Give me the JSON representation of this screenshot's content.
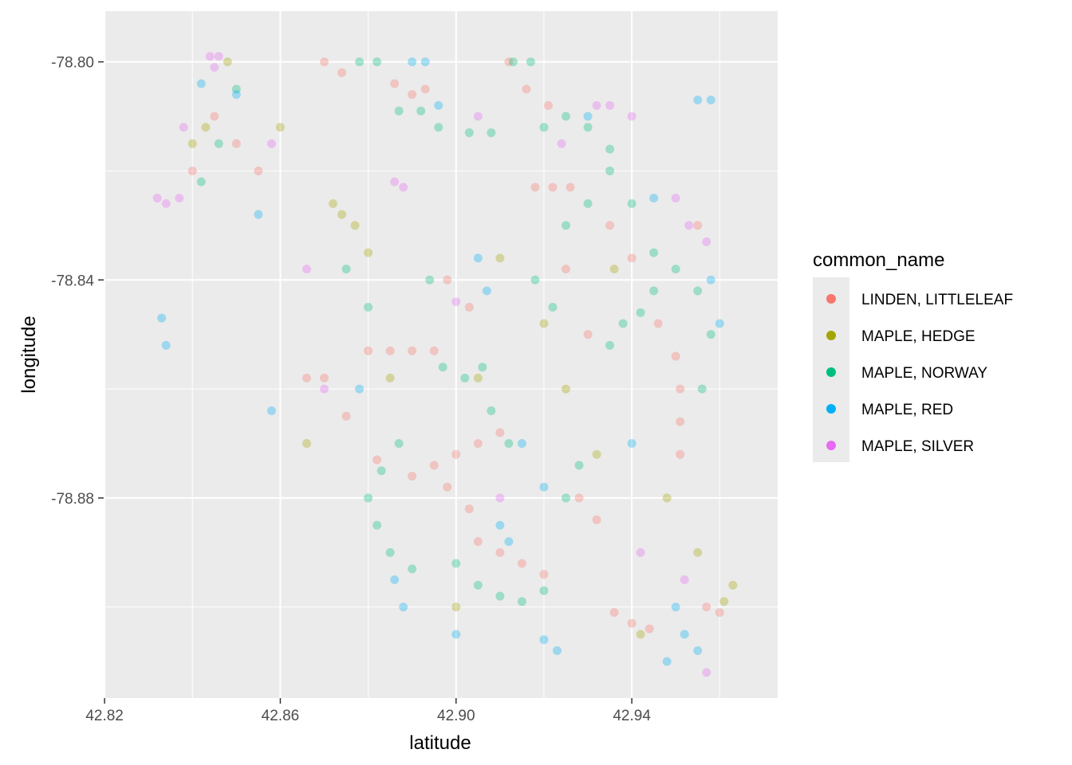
{
  "chart_data": {
    "type": "scatter",
    "xlabel": "latitude",
    "ylabel": "longitude",
    "xlim": [
      42.8198,
      42.9732
    ],
    "ylim": [
      -78.9167,
      -78.7907
    ],
    "x_ticks": [
      42.82,
      42.86,
      42.9,
      42.94
    ],
    "x_tick_labels": [
      "42.82",
      "42.86",
      "42.90",
      "42.94"
    ],
    "y_ticks": [
      -78.8,
      -78.84,
      -78.88
    ],
    "y_tick_labels": [
      "-78.80",
      "-78.84",
      "-78.88"
    ],
    "grid": true,
    "point_alpha": 0.15,
    "legend": {
      "title": "common_name",
      "position": "right",
      "entries": [
        {
          "label": "LINDEN, LITTLELEAF",
          "color": "#F8766D"
        },
        {
          "label": "MAPLE, HEDGE",
          "color": "#A3A500"
        },
        {
          "label": "MAPLE, NORWAY",
          "color": "#00BF7D"
        },
        {
          "label": "MAPLE, RED",
          "color": "#00B0F6"
        },
        {
          "label": "MAPLE, SILVER",
          "color": "#E76BF3"
        }
      ]
    },
    "series": [
      {
        "name": "LINDEN, LITTLELEAF",
        "color": "#F8766D",
        "points": [
          [
            42.886,
            -78.804
          ],
          [
            42.89,
            -78.806
          ],
          [
            42.893,
            -78.805
          ],
          [
            42.88,
            -78.853
          ],
          [
            42.885,
            -78.853
          ],
          [
            42.89,
            -78.853
          ],
          [
            42.895,
            -78.853
          ],
          [
            42.918,
            -78.823
          ],
          [
            42.922,
            -78.823
          ],
          [
            42.926,
            -78.823
          ],
          [
            42.91,
            -78.868
          ],
          [
            42.905,
            -78.87
          ],
          [
            42.9,
            -78.872
          ],
          [
            42.895,
            -78.874
          ],
          [
            42.89,
            -78.876
          ],
          [
            42.905,
            -78.888
          ],
          [
            42.91,
            -78.89
          ],
          [
            42.915,
            -78.892
          ],
          [
            42.92,
            -78.894
          ],
          [
            42.936,
            -78.901
          ],
          [
            42.94,
            -78.903
          ],
          [
            42.944,
            -78.904
          ],
          [
            42.957,
            -78.9
          ],
          [
            42.96,
            -78.901
          ],
          [
            42.951,
            -78.86
          ],
          [
            42.951,
            -78.866
          ],
          [
            42.951,
            -78.872
          ],
          [
            42.845,
            -78.81
          ],
          [
            42.85,
            -78.815
          ],
          [
            42.855,
            -78.82
          ],
          [
            42.84,
            -78.82
          ],
          [
            42.87,
            -78.8
          ],
          [
            42.874,
            -78.802
          ],
          [
            42.898,
            -78.84
          ],
          [
            42.903,
            -78.845
          ],
          [
            42.925,
            -78.838
          ],
          [
            42.93,
            -78.85
          ],
          [
            42.912,
            -78.8
          ],
          [
            42.916,
            -78.805
          ],
          [
            42.921,
            -78.808
          ],
          [
            42.882,
            -78.873
          ],
          [
            42.875,
            -78.865
          ],
          [
            42.866,
            -78.858
          ],
          [
            42.87,
            -78.858
          ],
          [
            42.898,
            -78.878
          ],
          [
            42.903,
            -78.882
          ],
          [
            42.935,
            -78.83
          ],
          [
            42.94,
            -78.836
          ],
          [
            42.946,
            -78.848
          ],
          [
            42.95,
            -78.854
          ],
          [
            42.955,
            -78.83
          ],
          [
            42.928,
            -78.88
          ],
          [
            42.932,
            -78.884
          ]
        ]
      },
      {
        "name": "MAPLE, HEDGE",
        "color": "#A3A500",
        "points": [
          [
            42.872,
            -78.826
          ],
          [
            42.874,
            -78.828
          ],
          [
            42.877,
            -78.83
          ],
          [
            42.84,
            -78.815
          ],
          [
            42.843,
            -78.812
          ],
          [
            42.88,
            -78.835
          ],
          [
            42.885,
            -78.858
          ],
          [
            42.91,
            -78.836
          ],
          [
            42.925,
            -78.86
          ],
          [
            42.963,
            -78.896
          ],
          [
            42.961,
            -78.899
          ],
          [
            42.955,
            -78.89
          ],
          [
            42.948,
            -78.88
          ],
          [
            42.942,
            -78.905
          ],
          [
            42.9,
            -78.9
          ],
          [
            42.92,
            -78.848
          ],
          [
            42.936,
            -78.838
          ],
          [
            42.866,
            -78.87
          ],
          [
            42.848,
            -78.8
          ],
          [
            42.86,
            -78.812
          ],
          [
            42.932,
            -78.872
          ],
          [
            42.905,
            -78.858
          ]
        ]
      },
      {
        "name": "MAPLE, NORWAY",
        "color": "#00BF7D",
        "points": [
          [
            42.887,
            -78.809
          ],
          [
            42.892,
            -78.809
          ],
          [
            42.896,
            -78.812
          ],
          [
            42.903,
            -78.813
          ],
          [
            42.908,
            -78.813
          ],
          [
            42.913,
            -78.8
          ],
          [
            42.917,
            -78.8
          ],
          [
            42.92,
            -78.812
          ],
          [
            42.925,
            -78.81
          ],
          [
            42.93,
            -78.812
          ],
          [
            42.935,
            -78.816
          ],
          [
            42.897,
            -78.856
          ],
          [
            42.902,
            -78.858
          ],
          [
            42.906,
            -78.856
          ],
          [
            42.935,
            -78.852
          ],
          [
            42.938,
            -78.848
          ],
          [
            42.942,
            -78.846
          ],
          [
            42.945,
            -78.842
          ],
          [
            42.95,
            -78.838
          ],
          [
            42.955,
            -78.842
          ],
          [
            42.958,
            -78.85
          ],
          [
            42.956,
            -78.86
          ],
          [
            42.9,
            -78.892
          ],
          [
            42.905,
            -78.896
          ],
          [
            42.91,
            -78.898
          ],
          [
            42.915,
            -78.899
          ],
          [
            42.92,
            -78.897
          ],
          [
            42.925,
            -78.88
          ],
          [
            42.928,
            -78.874
          ],
          [
            42.88,
            -78.88
          ],
          [
            42.882,
            -78.885
          ],
          [
            42.885,
            -78.89
          ],
          [
            42.89,
            -78.893
          ],
          [
            42.883,
            -78.875
          ],
          [
            42.887,
            -78.87
          ],
          [
            42.925,
            -78.83
          ],
          [
            42.93,
            -78.826
          ],
          [
            42.935,
            -78.82
          ],
          [
            42.94,
            -78.826
          ],
          [
            42.945,
            -78.835
          ],
          [
            42.85,
            -78.805
          ],
          [
            42.846,
            -78.815
          ],
          [
            42.842,
            -78.822
          ],
          [
            42.878,
            -78.8
          ],
          [
            42.882,
            -78.8
          ],
          [
            42.918,
            -78.84
          ],
          [
            42.922,
            -78.845
          ],
          [
            42.908,
            -78.864
          ],
          [
            42.912,
            -78.87
          ],
          [
            42.894,
            -78.84
          ],
          [
            42.88,
            -78.845
          ],
          [
            42.875,
            -78.838
          ]
        ]
      },
      {
        "name": "MAPLE, RED",
        "color": "#00B0F6",
        "points": [
          [
            42.833,
            -78.847
          ],
          [
            42.834,
            -78.852
          ],
          [
            42.858,
            -78.864
          ],
          [
            42.89,
            -78.8
          ],
          [
            42.893,
            -78.8
          ],
          [
            42.896,
            -78.808
          ],
          [
            42.905,
            -78.836
          ],
          [
            42.907,
            -78.842
          ],
          [
            42.915,
            -78.87
          ],
          [
            42.92,
            -78.878
          ],
          [
            42.91,
            -78.885
          ],
          [
            42.912,
            -78.888
          ],
          [
            42.95,
            -78.9
          ],
          [
            42.952,
            -78.905
          ],
          [
            42.955,
            -78.908
          ],
          [
            42.948,
            -78.91
          ],
          [
            42.958,
            -78.84
          ],
          [
            42.96,
            -78.848
          ],
          [
            42.945,
            -78.825
          ],
          [
            42.955,
            -78.807
          ],
          [
            42.958,
            -78.807
          ],
          [
            42.93,
            -78.81
          ],
          [
            42.886,
            -78.895
          ],
          [
            42.888,
            -78.9
          ],
          [
            42.842,
            -78.804
          ],
          [
            42.85,
            -78.806
          ],
          [
            42.855,
            -78.828
          ],
          [
            42.878,
            -78.86
          ],
          [
            42.9,
            -78.905
          ],
          [
            42.92,
            -78.906
          ],
          [
            42.923,
            -78.908
          ],
          [
            42.94,
            -78.87
          ]
        ]
      },
      {
        "name": "MAPLE, SILVER",
        "color": "#E76BF3",
        "points": [
          [
            42.844,
            -78.799
          ],
          [
            42.846,
            -78.799
          ],
          [
            42.845,
            -78.801
          ],
          [
            42.832,
            -78.825
          ],
          [
            42.834,
            -78.826
          ],
          [
            42.837,
            -78.825
          ],
          [
            42.886,
            -78.822
          ],
          [
            42.888,
            -78.823
          ],
          [
            42.932,
            -78.808
          ],
          [
            42.935,
            -78.808
          ],
          [
            42.94,
            -78.81
          ],
          [
            42.95,
            -78.825
          ],
          [
            42.953,
            -78.83
          ],
          [
            42.957,
            -78.833
          ],
          [
            42.866,
            -78.838
          ],
          [
            42.858,
            -78.815
          ],
          [
            42.838,
            -78.812
          ],
          [
            42.905,
            -78.81
          ],
          [
            42.924,
            -78.815
          ],
          [
            42.91,
            -78.88
          ],
          [
            42.942,
            -78.89
          ],
          [
            42.952,
            -78.895
          ],
          [
            42.957,
            -78.912
          ],
          [
            42.87,
            -78.86
          ],
          [
            42.9,
            -78.844
          ]
        ]
      }
    ]
  }
}
